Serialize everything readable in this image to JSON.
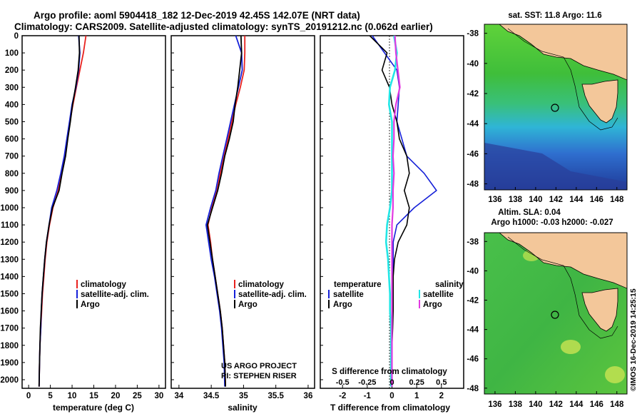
{
  "header": {
    "line1": "Argo profile: aoml 5904418_182 12-Dec-2019 42.45S 142.07E (NRT data)",
    "line2": "Climatology: CARS2009. Satellite-adjusted climatology: synTS_20191212.nc (0.062d earlier)"
  },
  "colors": {
    "climatology": "#e8211e",
    "satellite": "#1520d8",
    "argo": "#000000",
    "s_satellite": "#22e6e6",
    "s_argo": "#e23ae2",
    "land": "#f3c79a"
  },
  "depth_axis": {
    "ticks": [
      "0",
      "100",
      "200",
      "300",
      "400",
      "500",
      "600",
      "700",
      "800",
      "900",
      "1000",
      "1100",
      "1200",
      "1300",
      "1400",
      "1500",
      "1600",
      "1700",
      "1800",
      "1900",
      "2000"
    ]
  },
  "panels": {
    "temperature": {
      "xlabel": "temperature (deg C)",
      "xticks": [
        "0",
        "5",
        "10",
        "15",
        "20",
        "25",
        "30"
      ],
      "legend": [
        "climatology",
        "satellite-adj. clim.",
        "Argo"
      ]
    },
    "salinity": {
      "xlabel": "salinity",
      "xticks": [
        "34",
        "34.5",
        "35",
        "35.5",
        "36"
      ],
      "legend": [
        "climatology",
        "satellite-adj. clim.",
        "Argo"
      ],
      "credit1": "US ARGO PROJECT",
      "credit2": "PI: STEPHEN RISER"
    },
    "difference": {
      "xlabel": "T difference from climatology",
      "xticks": [
        "-2",
        "-1",
        "0",
        "1",
        "2"
      ],
      "s_title": "S difference from climatology",
      "s_ticks": [
        "-0.5",
        "-0.25",
        "0",
        "0.25",
        "0.5"
      ],
      "legend_t_title": "temperature",
      "legend_s_title": "salinity",
      "legend_t": [
        "satellite",
        "Argo"
      ],
      "legend_s": [
        "satellite",
        "Argo"
      ]
    }
  },
  "maps": {
    "sst_title": "sat. SST: 11.8 Argo: 11.6",
    "sla_title1": "Altim. SLA: 0.04",
    "sla_title2": "Argo h1000: -0.03 h2000: -0.027",
    "lat_ticks": [
      "-38",
      "-40",
      "-42",
      "-44",
      "-46",
      "-48"
    ],
    "lon_ticks": [
      "136",
      "138",
      "140",
      "142",
      "144",
      "146",
      "148"
    ],
    "profile_lat": -42.45,
    "profile_lon": 142.07,
    "footer": "©IMOS 16-Dec-2019 14:25:15"
  },
  "chart_data": [
    {
      "type": "line",
      "title": "",
      "xlabel": "temperature (deg C)",
      "ylabel": "",
      "xlim": [
        -1.5,
        31.5
      ],
      "ylim": [
        2050,
        0
      ],
      "series": [
        {
          "name": "climatology",
          "x": [
            13.2,
            12.6,
            11.8,
            11.0,
            10.2,
            9.5,
            8.9,
            8.3,
            7.6,
            6.8,
            5.6,
            4.8,
            4.2,
            3.8,
            3.5,
            3.2,
            3.0,
            2.8,
            2.6,
            2.5,
            2.4
          ],
          "y": [
            0,
            100,
            200,
            300,
            400,
            500,
            600,
            700,
            800,
            900,
            1000,
            1100,
            1200,
            1300,
            1400,
            1500,
            1600,
            1700,
            1800,
            1900,
            2040
          ]
        },
        {
          "name": "satellite-adj. clim.",
          "x": [
            11.5,
            11.8,
            11.5,
            10.9,
            10.0,
            9.4,
            8.8,
            8.2,
            7.4,
            6.5,
            5.3,
            4.7,
            4.1,
            3.7,
            3.4,
            3.1,
            2.9,
            2.8,
            2.6,
            2.5,
            2.4
          ],
          "y": [
            0,
            100,
            200,
            300,
            400,
            500,
            600,
            700,
            800,
            900,
            1000,
            1100,
            1200,
            1300,
            1400,
            1500,
            1600,
            1700,
            1800,
            1900,
            2040
          ]
        },
        {
          "name": "Argo",
          "x": [
            11.6,
            11.7,
            11.4,
            10.8,
            10.1,
            9.6,
            9.0,
            8.5,
            7.7,
            7.0,
            5.5,
            4.7,
            4.1,
            3.7,
            3.4,
            3.1,
            2.9,
            2.7,
            2.6,
            2.5,
            2.4
          ],
          "y": [
            0,
            100,
            200,
            300,
            400,
            500,
            600,
            700,
            800,
            900,
            1000,
            1100,
            1200,
            1300,
            1400,
            1500,
            1600,
            1700,
            1800,
            1900,
            2040
          ]
        }
      ]
    },
    {
      "type": "line",
      "title": "",
      "xlabel": "salinity",
      "ylabel": "",
      "xlim": [
        33.88,
        36.1
      ],
      "ylim": [
        2050,
        0
      ],
      "series": [
        {
          "name": "climatology",
          "x": [
            35.02,
            35.02,
            35.01,
            34.95,
            34.88,
            34.82,
            34.76,
            34.7,
            34.64,
            34.59,
            34.51,
            34.45,
            34.49,
            34.52,
            34.56,
            34.6,
            34.64,
            34.67,
            34.69,
            34.71,
            34.72
          ],
          "y": [
            0,
            100,
            200,
            300,
            400,
            500,
            600,
            700,
            800,
            900,
            1000,
            1100,
            1200,
            1300,
            1400,
            1500,
            1600,
            1700,
            1800,
            1900,
            2040
          ]
        },
        {
          "name": "satellite-adj. clim.",
          "x": [
            34.88,
            34.97,
            34.98,
            34.92,
            34.86,
            34.8,
            34.74,
            34.68,
            34.62,
            34.57,
            34.49,
            34.42,
            34.46,
            34.5,
            34.55,
            34.59,
            34.63,
            34.66,
            34.68,
            34.7,
            34.71
          ],
          "y": [
            0,
            100,
            200,
            300,
            400,
            500,
            600,
            700,
            800,
            900,
            1000,
            1100,
            1200,
            1300,
            1400,
            1500,
            1600,
            1700,
            1800,
            1900,
            2040
          ]
        },
        {
          "name": "Argo",
          "x": [
            34.96,
            34.97,
            34.94,
            34.91,
            34.87,
            34.84,
            34.78,
            34.71,
            34.66,
            34.6,
            34.52,
            34.44,
            34.48,
            34.52,
            34.56,
            34.6,
            34.64,
            34.67,
            34.69,
            34.71,
            34.72
          ],
          "y": [
            0,
            100,
            200,
            300,
            400,
            500,
            600,
            700,
            800,
            900,
            1000,
            1100,
            1200,
            1300,
            1400,
            1500,
            1600,
            1700,
            1800,
            1900,
            2040
          ]
        }
      ]
    },
    {
      "type": "line",
      "title": "",
      "xlabel": "T difference from climatology",
      "ylabel": "",
      "xlim": [
        -2.9,
        2.9
      ],
      "ylim": [
        2050,
        0
      ],
      "series": [
        {
          "name": "temperature satellite",
          "x": [
            -0.8,
            -0.3,
            0.2,
            0.3,
            0.25,
            0.2,
            0.4,
            0.6,
            1.3,
            1.8,
            0.9,
            0.2,
            0.05,
            0.05,
            0.05,
            0.02,
            0.02,
            0.0,
            0.0,
            0.0,
            0.0
          ],
          "y": [
            0,
            100,
            200,
            300,
            400,
            500,
            600,
            700,
            800,
            900,
            1000,
            1100,
            1200,
            1300,
            1400,
            1500,
            1600,
            1700,
            1800,
            1900,
            2040
          ]
        },
        {
          "name": "temperature Argo",
          "x": [
            -0.9,
            -0.2,
            -0.4,
            -0.1,
            0.0,
            0.2,
            0.3,
            0.6,
            0.7,
            0.5,
            0.7,
            0.6,
            0.25,
            0.1,
            0.05,
            0.05,
            0.05,
            0.03,
            0.0,
            0.0,
            0.0
          ],
          "y": [
            0,
            100,
            200,
            300,
            400,
            500,
            600,
            700,
            800,
            900,
            1000,
            1100,
            1200,
            1300,
            1400,
            1500,
            1600,
            1700,
            1800,
            1900,
            2040
          ]
        },
        {
          "name": "salinity satellite",
          "x": [
            0.02,
            0.05,
            0.03,
            -0.02,
            -0.03,
            0.0,
            0.0,
            0.0,
            0.0,
            0.0,
            -0.02,
            -0.05,
            -0.06,
            -0.04,
            -0.03,
            -0.02,
            -0.02,
            -0.01,
            -0.01,
            -0.01,
            -0.01
          ],
          "y": [
            0,
            100,
            200,
            300,
            400,
            500,
            600,
            700,
            800,
            900,
            1000,
            1100,
            1200,
            1300,
            1400,
            1500,
            1600,
            1700,
            1800,
            1900,
            2040
          ]
        },
        {
          "name": "salinity Argo",
          "x": [
            0.03,
            0.04,
            0.06,
            0.08,
            0.04,
            0.02,
            0.02,
            0.01,
            0.02,
            0.01,
            0.01,
            0.0,
            0.0,
            0.0,
            0.0,
            0.0,
            0.0,
            0.0,
            0.0,
            0.0,
            0.0
          ],
          "y": [
            0,
            100,
            200,
            300,
            400,
            500,
            600,
            700,
            800,
            900,
            1000,
            1100,
            1200,
            1300,
            1400,
            1500,
            1600,
            1700,
            1800,
            1900,
            2040
          ]
        }
      ]
    }
  ]
}
